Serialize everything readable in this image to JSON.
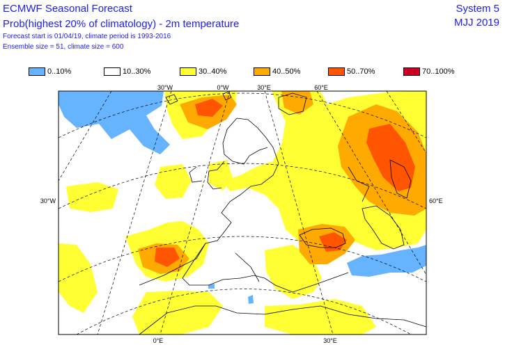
{
  "header": {
    "title": "ECMWF Seasonal Forecast",
    "subtitle": "Prob(highest 20% of climatology) - 2m temperature",
    "line3": "Forecast start is 01/04/19, climate period is 1993-2016",
    "line4": "Ensemble size = 51, climate size = 600",
    "system": "System 5",
    "season": "MJJ 2019"
  },
  "legend": [
    {
      "label": "0..10%",
      "color": "#66b3ff"
    },
    {
      "label": "10..30%",
      "color": "#ffffff"
    },
    {
      "label": "30..40%",
      "color": "#ffff33"
    },
    {
      "label": "40..50%",
      "color": "#ffaa00"
    },
    {
      "label": "50..70%",
      "color": "#ff5500"
    },
    {
      "label": "70..100%",
      "color": "#cc0022"
    }
  ],
  "axis_labels": {
    "top": [
      "30°W",
      "0°W",
      "30°E",
      "60°E"
    ],
    "bottom": [
      "0°E",
      "30°E"
    ],
    "left": "30°W",
    "right": "60°E"
  }
}
